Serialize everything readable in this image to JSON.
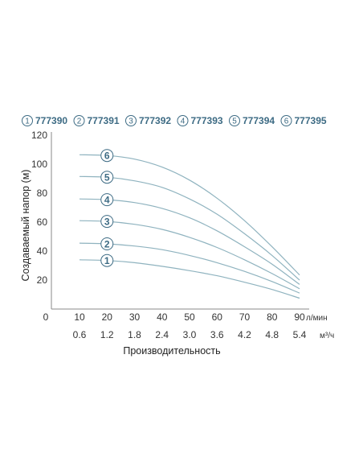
{
  "chart_data": {
    "type": "line",
    "title": "",
    "ylabel": "Создаваемый напор (м)",
    "xlabel": "Производительность",
    "ylim": [
      0,
      120
    ],
    "yticks": [
      0,
      20,
      40,
      60,
      80,
      100,
      120
    ],
    "xlim": [
      0,
      90
    ],
    "x_ticks_lmin": [
      "10",
      "20",
      "30",
      "40",
      "50",
      "60",
      "70",
      "80",
      "90"
    ],
    "x_unit_lmin": "л/мин",
    "x_ticks_m3h": [
      "0.6",
      "1.2",
      "1.8",
      "2.4",
      "3.0",
      "3.6",
      "4.2",
      "4.8",
      "5.4"
    ],
    "x_unit_m3h": "м³/ч",
    "grid": false,
    "legend_position": "top",
    "x": [
      10,
      20,
      30,
      40,
      50,
      60,
      70,
      80,
      90
    ],
    "series": [
      {
        "name": "777390",
        "label": "1",
        "values": [
          34,
          33.5,
          32,
          29.5,
          26.5,
          23,
          18.5,
          13.5,
          7.5
        ]
      },
      {
        "name": "777391",
        "label": "2",
        "values": [
          45.5,
          45,
          43.5,
          41,
          37,
          32,
          26,
          19,
          11
        ]
      },
      {
        "name": "777392",
        "label": "3",
        "values": [
          61,
          60.5,
          58.5,
          55,
          49.5,
          42.5,
          34,
          24.5,
          14
        ]
      },
      {
        "name": "777393",
        "label": "4",
        "values": [
          76,
          75.5,
          73.5,
          69.5,
          63,
          54,
          43,
          31,
          17
        ]
      },
      {
        "name": "777394",
        "label": "5",
        "values": [
          91.5,
          91,
          88.5,
          84,
          76,
          65.5,
          52,
          37,
          20
        ]
      },
      {
        "name": "777395",
        "label": "6",
        "values": [
          106.5,
          106,
          103.5,
          98,
          89,
          76.5,
          61,
          43,
          23.5
        ]
      }
    ],
    "colors": {
      "curve": "#8fb3bf",
      "badge": "#3d6b84",
      "axis": "#888888"
    }
  }
}
